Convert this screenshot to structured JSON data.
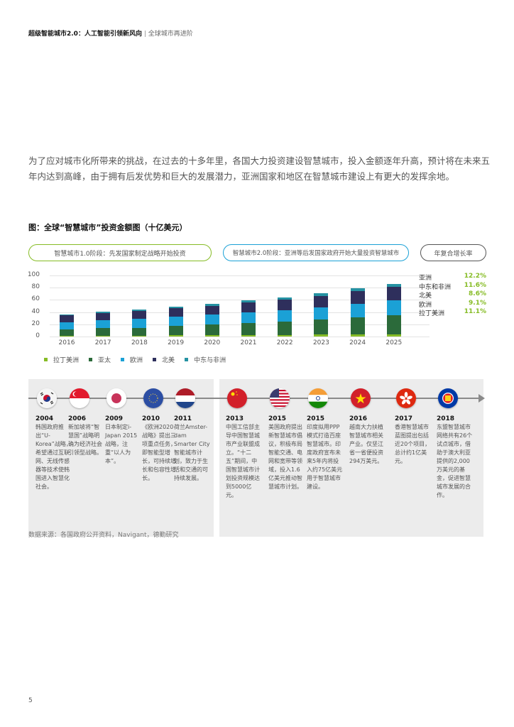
{
  "header": {
    "title": "超级智能城市2.0：人工智能引领新风向",
    "separator": "|",
    "subtitle": "全球城市再进阶"
  },
  "intro": "为了应对城市化所带来的挑战，在过去的十多年里，各国大力投资建设智慧城市，投入金额逐年升高，预计将在未来五年内达到高峰，由于拥有后发优势和巨大的发展潜力，亚洲国家和地区在智慧城市建设上有更大的发挥余地。",
  "figure": {
    "title": "图：全球“智慧城市”投资金额图（十亿美元）",
    "pills": [
      {
        "label": "智慧城市1.0阶段：先发国家制定战略开始投资",
        "color": "#86bc25"
      },
      {
        "label": "智慧城市2.0阶段：亚洲等后发国家政府开始大量投资智慧城市",
        "color": "#1ba1d6"
      },
      {
        "label": "年复合增长率",
        "color": "#555555"
      }
    ],
    "cagr_title": "年复合增长率",
    "cagr": [
      {
        "region": "亚洲",
        "value": "12.2%"
      },
      {
        "region": "中东和非洲",
        "value": "11.6%"
      },
      {
        "region": "北美",
        "value": "8.6%"
      },
      {
        "region": "欧洲",
        "value": "9.1%"
      },
      {
        "region": "拉丁美洲",
        "value": "11.1%"
      }
    ]
  },
  "chart_data": {
    "type": "bar",
    "stacked": true,
    "title": "全球“智慧城市”投资金额图（十亿美元）",
    "xlabel": "",
    "ylabel": "十亿美元",
    "ylim": [
      0,
      100
    ],
    "yticks": [
      0,
      20,
      40,
      60,
      80,
      100
    ],
    "grid": true,
    "legend_position": "bottom",
    "categories": [
      "2016",
      "2017",
      "2018",
      "2019",
      "2020",
      "2021",
      "2022",
      "2023",
      "2024",
      "2025"
    ],
    "series": [
      {
        "name": "拉丁美洲",
        "color": "#86bc25",
        "values": [
          1,
          1.5,
          1.5,
          2,
          2,
          2.5,
          2.5,
          3,
          3,
          3.5
        ]
      },
      {
        "name": "亚太",
        "color": "#2b6a3a",
        "values": [
          11,
          12,
          13,
          15,
          17.5,
          19.5,
          21.5,
          24.5,
          28,
          31
        ]
      },
      {
        "name": "欧洲",
        "color": "#1ba1d6",
        "values": [
          11.5,
          13,
          14.5,
          15.5,
          16,
          17.5,
          19.5,
          20.5,
          22.5,
          25
        ]
      },
      {
        "name": "北美",
        "color": "#2e2f5c",
        "values": [
          11,
          11.5,
          12.5,
          13.5,
          14.5,
          16.5,
          17.5,
          18.5,
          20.5,
          22
        ]
      },
      {
        "name": "中东与非洲",
        "color": "#2592a3",
        "values": [
          2,
          2.5,
          2.5,
          2.5,
          3,
          3,
          3.5,
          4,
          5,
          5
        ]
      }
    ]
  },
  "legend": [
    "拉丁美洲",
    "亚太",
    "欧洲",
    "北美",
    "中东与非洲"
  ],
  "timeline": [
    {
      "year": "2004",
      "flag": "korea-flag",
      "text": "韩国政府推出“U-Korea”战略，希望通过互联网、无线传感器等技术使韩国进入智慧化社会。"
    },
    {
      "year": "2006",
      "flag": "singapore-flag",
      "text": "新加坡将“智慧国”战略明确为经济社会引领型战略。"
    },
    {
      "year": "2009",
      "flag": "japan-flag",
      "text": "日本制定i-Japan 2015战略，注重“以人为本”。"
    },
    {
      "year": "2010",
      "flag": "eu-flag",
      "text": "《欧洲2020战略》提出三项重点任务，即智能型增长，可持续增长和包容性增长。"
    },
    {
      "year": "2011",
      "flag": "netherlands-flag",
      "text": "荷兰Amster-dam Smarter City智能城市计划，致力于生活和交通的可持续发展。"
    },
    {
      "year": "2013",
      "flag": "china-flag",
      "text": "中国工信部主导中国智慧城市产业联盟成立。“十二五”期间，中国智慧城市计划投资规模达到5000亿元。"
    },
    {
      "year": "2015",
      "flag": "usa-flag",
      "text": "美国政府提出新智慧城市倡议，积极布局智能交通、电网和宽带等领域，投入1.6亿美元推动智慧城市计划。"
    },
    {
      "year": "2015",
      "flag": "india-flag",
      "text": "印度拟用PPP模式打造百座智慧城市。印度政府宣布未来5年内将投入约75亿美元用于智慧城市建设。"
    },
    {
      "year": "2016",
      "flag": "vietnam-flag",
      "text": "越南大力扶植智慧城市相关产业。仅坚江省一省便投资294万美元。"
    },
    {
      "year": "2017",
      "flag": "hongkong-flag",
      "text": "香港智慧城市蓝图提出包括近20个项目，总计约1亿美元。"
    },
    {
      "year": "2018",
      "flag": "asean-flag",
      "text": "东盟智慧城市网络共有26个试点城市，借助于澳大利亚提供的2,000万美元的基金，促进智慧城市发展的合作。"
    }
  ],
  "source": "数据来源：各国政府公开资料，Navigant，德勤研究",
  "page_number": "5"
}
